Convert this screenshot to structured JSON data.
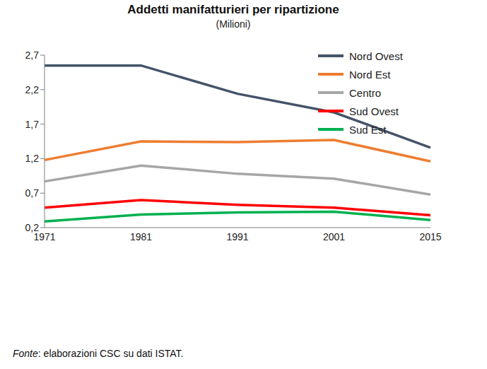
{
  "chart_data": {
    "type": "line",
    "title": "Addetti manifatturieri per ripartizione",
    "subtitle": "(Milioni)",
    "source": "Fonte: elaborazioni CSC su dati ISTAT.",
    "categories": [
      "1971",
      "1981",
      "1991",
      "2001",
      "2015"
    ],
    "series": [
      {
        "name": "Nord Ovest",
        "color": "#44546a",
        "values": [
          2.55,
          2.55,
          2.14,
          1.87,
          1.36
        ]
      },
      {
        "name": "Nord Est",
        "color": "#ed7d31",
        "values": [
          1.18,
          1.45,
          1.44,
          1.47,
          1.16
        ]
      },
      {
        "name": "Centro",
        "color": "#a6a6a6",
        "values": [
          0.87,
          1.1,
          0.98,
          0.91,
          0.68
        ]
      },
      {
        "name": "Sud Ovest",
        "color": "#ff0000",
        "values": [
          0.49,
          0.6,
          0.53,
          0.49,
          0.38
        ]
      },
      {
        "name": "Sud Est",
        "color": "#00b050",
        "values": [
          0.29,
          0.39,
          0.42,
          0.43,
          0.31
        ]
      }
    ],
    "ylim": [
      0.2,
      2.7
    ],
    "yticks": [
      {
        "value": 0.2,
        "label": "0,2"
      },
      {
        "value": 0.7,
        "label": "0,7"
      },
      {
        "value": 1.2,
        "label": "1,2"
      },
      {
        "value": 1.7,
        "label": "1,7"
      },
      {
        "value": 2.2,
        "label": "2,2"
      },
      {
        "value": 2.7,
        "label": "2,7"
      }
    ],
    "grid": false,
    "legend": "upper right"
  }
}
